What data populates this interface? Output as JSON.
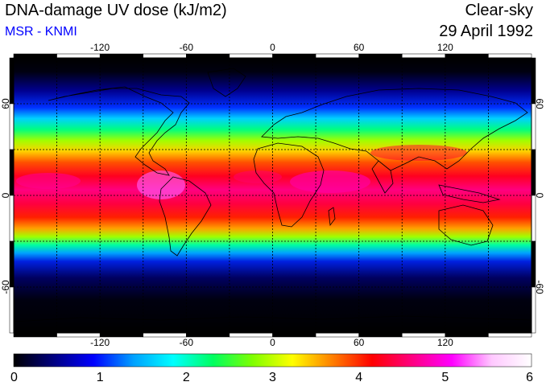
{
  "header": {
    "title": "DNA-damage UV dose (kJ/m2)",
    "source": "MSR - KNMI",
    "mode": "Clear-sky",
    "date": "29 April 1992"
  },
  "map": {
    "lon_labels": [
      "-120",
      "-60",
      "0",
      "60",
      "120"
    ],
    "lat_labels": [
      "60",
      "0",
      "-60"
    ],
    "lon_values": [
      -120,
      -60,
      0,
      60,
      120
    ],
    "lat_values": [
      60,
      0,
      -60
    ]
  },
  "colorbar": {
    "labels": [
      "0",
      "1",
      "2",
      "3",
      "4",
      "5",
      "6"
    ],
    "min": 0,
    "max": 6,
    "stops": [
      "#000000",
      "#000080",
      "#0000ff",
      "#00a0ff",
      "#00ffff",
      "#00ff60",
      "#80ff00",
      "#ffff00",
      "#ff8000",
      "#ff0000",
      "#ff0080",
      "#ff00ff",
      "#ffc8ff",
      "#ffffff"
    ]
  }
}
